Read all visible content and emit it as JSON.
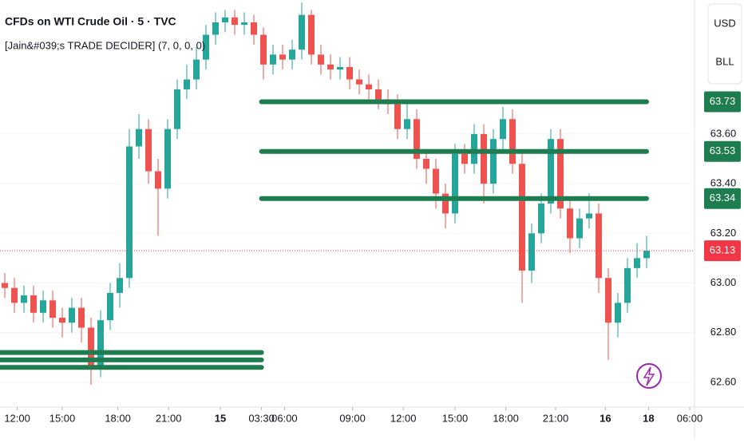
{
  "chart_data": {
    "type": "candlestick",
    "title": "CFDs on WTI Crude Oil · 5 · TVC",
    "subtitle": "[Jain&#039;s TRADE DECIDER] (7, 0, 0, 0)",
    "currency": "USD",
    "unit": "BLL",
    "up_color": "#26a69a",
    "down_color": "#ef5350",
    "open": [
      63.0,
      62.98,
      62.92,
      62.95,
      62.88,
      62.93,
      62.86,
      62.84,
      62.9,
      62.82,
      62.66,
      62.85,
      62.96,
      63.02,
      63.55,
      63.62,
      63.45,
      63.38,
      63.62,
      63.78,
      63.82,
      63.9,
      64.0,
      64.05,
      64.07,
      64.04,
      64.05,
      64.0,
      63.88,
      63.92,
      63.9,
      63.94,
      64.08,
      63.92,
      63.88,
      63.86,
      63.87,
      63.82,
      63.8,
      63.78,
      63.74,
      63.72,
      63.62,
      63.66,
      63.5,
      63.46,
      63.36,
      63.28,
      63.52,
      63.48,
      63.6,
      63.4,
      63.58,
      63.66,
      63.48,
      63.05,
      63.2,
      63.32,
      63.58,
      63.3,
      63.18,
      63.26,
      63.28,
      63.02,
      62.84,
      62.92,
      63.06,
      63.1
    ],
    "high": [
      63.04,
      63.02,
      62.99,
      62.99,
      62.97,
      62.97,
      62.9,
      62.94,
      62.94,
      62.86,
      62.89,
      63.0,
      63.08,
      63.62,
      63.68,
      63.66,
      63.5,
      63.66,
      63.82,
      63.88,
      63.95,
      64.04,
      64.09,
      64.1,
      64.1,
      64.09,
      64.08,
      64.03,
      63.96,
      63.96,
      63.98,
      64.13,
      64.1,
      63.96,
      63.92,
      63.91,
      63.91,
      63.86,
      63.84,
      63.82,
      63.78,
      63.76,
      63.72,
      63.7,
      63.54,
      63.5,
      63.4,
      63.56,
      63.56,
      63.64,
      63.64,
      63.62,
      63.71,
      63.7,
      63.52,
      63.24,
      63.36,
      63.62,
      63.62,
      63.34,
      63.3,
      63.36,
      63.32,
      63.06,
      62.96,
      63.1,
      63.16,
      63.19
    ],
    "low": [
      62.94,
      62.88,
      62.88,
      62.84,
      62.84,
      62.82,
      62.78,
      62.8,
      62.76,
      62.59,
      62.62,
      62.81,
      62.9,
      62.98,
      63.5,
      63.4,
      63.19,
      63.34,
      63.58,
      63.74,
      63.78,
      63.86,
      63.96,
      64.01,
      64.0,
      64.0,
      63.96,
      63.82,
      63.84,
      63.86,
      63.86,
      63.9,
      63.88,
      63.84,
      63.82,
      63.82,
      63.78,
      63.76,
      63.74,
      63.7,
      63.68,
      63.58,
      63.58,
      63.46,
      63.4,
      63.3,
      63.22,
      63.24,
      63.44,
      63.44,
      63.32,
      63.36,
      63.54,
      63.44,
      62.92,
      63.0,
      63.16,
      63.28,
      63.26,
      63.12,
      63.14,
      63.22,
      62.96,
      62.69,
      62.78,
      62.88,
      63.02,
      63.06
    ],
    "close": [
      62.98,
      62.92,
      62.95,
      62.88,
      62.93,
      62.86,
      62.84,
      62.9,
      62.82,
      62.66,
      62.85,
      62.96,
      63.02,
      63.55,
      63.62,
      63.45,
      63.38,
      63.62,
      63.78,
      63.82,
      63.9,
      64.0,
      64.05,
      64.07,
      64.04,
      64.05,
      64.0,
      63.88,
      63.92,
      63.9,
      63.94,
      64.08,
      63.92,
      63.88,
      63.86,
      63.87,
      63.82,
      63.8,
      63.78,
      63.74,
      63.72,
      63.62,
      63.66,
      63.5,
      63.46,
      63.36,
      63.28,
      63.52,
      63.48,
      63.6,
      63.4,
      63.58,
      63.66,
      63.48,
      63.05,
      63.2,
      63.32,
      63.58,
      63.3,
      63.18,
      63.26,
      63.28,
      63.02,
      62.84,
      62.92,
      63.06,
      63.1,
      63.13
    ],
    "levels": [
      {
        "value": 63.73,
        "color": "#1e7d4f",
        "x": [
          26.8,
          67
        ],
        "labeled": true
      },
      {
        "value": 63.53,
        "color": "#1e7d4f",
        "x": [
          26.8,
          67
        ],
        "labeled": true
      },
      {
        "value": 63.34,
        "color": "#1e7d4f",
        "x": [
          26.8,
          67
        ],
        "labeled": true
      },
      {
        "value": 62.72,
        "color": "#1e7d4f",
        "x": [
          -0.5,
          26.8
        ],
        "labeled": false
      },
      {
        "value": 62.69,
        "color": "#1e7d4f",
        "x": [
          -0.5,
          26.8
        ],
        "labeled": false
      },
      {
        "value": 62.66,
        "color": "#1e7d4f",
        "x": [
          -0.5,
          26.8
        ],
        "labeled": false
      }
    ],
    "last_price": 63.13,
    "last_price_color": "#f23645",
    "xlim": [
      -0.5,
      72
    ],
    "ylim": [
      62.5,
      64.14
    ],
    "yticks": [
      {
        "value": 63.6,
        "label": "63.60"
      },
      {
        "value": 63.4,
        "label": "63.40"
      },
      {
        "value": 63.2,
        "label": "63.20"
      },
      {
        "value": 63.0,
        "label": "63.00"
      },
      {
        "value": 62.8,
        "label": "62.80"
      },
      {
        "value": 62.6,
        "label": "62.60"
      }
    ],
    "xticks": [
      {
        "value": 1.3,
        "label": "12:00"
      },
      {
        "value": 6,
        "label": "15:00"
      },
      {
        "value": 11.8,
        "label": "18:00"
      },
      {
        "value": 17.1,
        "label": "21:00"
      },
      {
        "value": 22.5,
        "label": "15"
      },
      {
        "value": 26.8,
        "label": "03:30"
      },
      {
        "value": 29.2,
        "label": "06:00"
      },
      {
        "value": 36.3,
        "label": "09:00"
      },
      {
        "value": 41.6,
        "label": "12:00"
      },
      {
        "value": 47,
        "label": "15:00"
      },
      {
        "value": 52.3,
        "label": "18:00"
      },
      {
        "value": 57.5,
        "label": "21:00"
      },
      {
        "value": 62.7,
        "label": "16"
      },
      {
        "value": 67.2,
        "label": "18"
      },
      {
        "value": 71.5,
        "label": "06:00"
      }
    ]
  }
}
